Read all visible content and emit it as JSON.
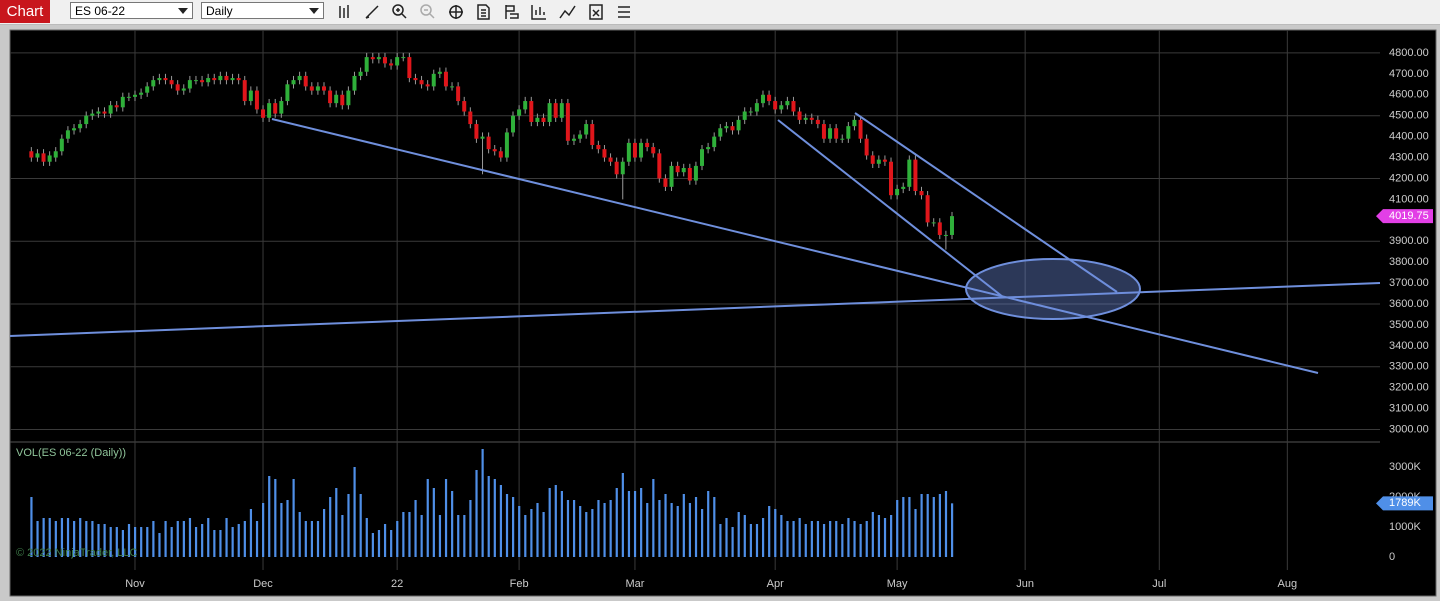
{
  "toolbar": {
    "title": "Chart",
    "instrument": "ES 06-22",
    "interval": "Daily"
  },
  "chart_data": [
    {
      "type": "candlestick",
      "up_color": "#2fb03a",
      "down_color": "#e0161b",
      "wick_color": "#9a9a9a",
      "grid": true,
      "xlim": [
        -3.5,
        221.2
      ],
      "xticks": [
        {
          "value": 17,
          "label": "Nov"
        },
        {
          "value": 38,
          "label": "Dec"
        },
        {
          "value": 60,
          "label": "22"
        },
        {
          "value": 80,
          "label": "Feb"
        },
        {
          "value": 99,
          "label": "Mar"
        },
        {
          "value": 122,
          "label": "Apr"
        },
        {
          "value": 142,
          "label": "May"
        },
        {
          "value": 163,
          "label": "Jun"
        },
        {
          "value": 185,
          "label": "Jul"
        },
        {
          "value": 206,
          "label": "Aug"
        }
      ],
      "ylim": [
        2950,
        4900
      ],
      "yticks": [
        {
          "value": 3000,
          "label": "3000.00"
        },
        {
          "value": 3100,
          "label": "3100.00"
        },
        {
          "value": 3200,
          "label": "3200.00"
        },
        {
          "value": 3300,
          "label": "3300.00"
        },
        {
          "value": 3400,
          "label": "3400.00"
        },
        {
          "value": 3500,
          "label": "3500.00"
        },
        {
          "value": 3600,
          "label": "3600.00"
        },
        {
          "value": 3700,
          "label": "3700.00"
        },
        {
          "value": 3800,
          "label": "3800.00"
        },
        {
          "value": 3900,
          "label": "3900.00"
        },
        {
          "value": 4000,
          "label": "4000.00"
        },
        {
          "value": 4100,
          "label": "4100.00"
        },
        {
          "value": 4200,
          "label": "4200.00"
        },
        {
          "value": 4300,
          "label": "4300.00"
        },
        {
          "value": 4400,
          "label": "4400.00"
        },
        {
          "value": 4500,
          "label": "4500.00"
        },
        {
          "value": 4600,
          "label": "4600.00"
        },
        {
          "value": 4700,
          "label": "4700.00"
        },
        {
          "value": 4800,
          "label": "4800.00"
        }
      ],
      "ygrid": [
        3000,
        3300,
        3600,
        3900,
        4200,
        4500,
        4800
      ],
      "last_price": {
        "value": 4019.75,
        "label": "4019.75"
      },
      "last_price_color": "#e23fe6",
      "open": [
        4330,
        4300,
        4320,
        4280,
        4300,
        4330,
        4390,
        4430,
        4440,
        4460,
        4500,
        4510,
        4520,
        4510,
        4550,
        4540,
        4590,
        4590,
        4600,
        4610,
        4640,
        4670,
        4680,
        4670,
        4650,
        4620,
        4630,
        4670,
        4670,
        4660,
        4680,
        4670,
        4690,
        4670,
        4680,
        4670,
        4570,
        4620,
        4530,
        4490,
        4560,
        4510,
        4570,
        4650,
        4670,
        4690,
        4640,
        4620,
        4640,
        4620,
        4560,
        4600,
        4550,
        4620,
        4690,
        4710,
        4780,
        4770,
        4780,
        4750,
        4740,
        4780,
        4780,
        4680,
        4670,
        4650,
        4640,
        4700,
        4710,
        4640,
        4640,
        4570,
        4520,
        4460,
        4390,
        4400,
        4340,
        4330,
        4300,
        4420,
        4500,
        4530,
        4570,
        4470,
        4490,
        4470,
        4560,
        4490,
        4560,
        4380,
        4390,
        4410,
        4460,
        4360,
        4340,
        4300,
        4280,
        4220,
        4280,
        4370,
        4300,
        4370,
        4350,
        4320,
        4200,
        4160,
        4260,
        4230,
        4250,
        4190,
        4260,
        4340,
        4350,
        4400,
        4440,
        4450,
        4430,
        4480,
        4520,
        4520,
        4560,
        4600,
        4570,
        4530,
        4550,
        4570,
        4520,
        4480,
        4490,
        4480,
        4460,
        4390,
        4440,
        4390,
        4390,
        4450,
        4480,
        4390,
        4310,
        4270,
        4290,
        4280,
        4120,
        4150,
        4160,
        4290,
        4140,
        4120,
        3990,
        3990,
        3930,
        3930
      ],
      "high": [
        4350,
        4340,
        4340,
        4330,
        4350,
        4410,
        4450,
        4460,
        4480,
        4520,
        4530,
        4540,
        4540,
        4570,
        4570,
        4610,
        4610,
        4620,
        4630,
        4660,
        4690,
        4700,
        4700,
        4690,
        4670,
        4650,
        4690,
        4690,
        4690,
        4700,
        4700,
        4710,
        4710,
        4700,
        4700,
        4690,
        4640,
        4640,
        4550,
        4580,
        4580,
        4590,
        4670,
        4690,
        4710,
        4710,
        4660,
        4660,
        4660,
        4640,
        4620,
        4620,
        4640,
        4710,
        4730,
        4800,
        4800,
        4800,
        4800,
        4770,
        4800,
        4800,
        4800,
        4700,
        4690,
        4670,
        4720,
        4730,
        4730,
        4660,
        4660,
        4590,
        4540,
        4480,
        4420,
        4420,
        4360,
        4350,
        4440,
        4520,
        4550,
        4590,
        4590,
        4510,
        4510,
        4580,
        4580,
        4580,
        4580,
        4410,
        4430,
        4480,
        4480,
        4380,
        4360,
        4320,
        4300,
        4300,
        4390,
        4390,
        4390,
        4390,
        4370,
        4340,
        4220,
        4280,
        4280,
        4270,
        4270,
        4280,
        4360,
        4370,
        4420,
        4460,
        4470,
        4470,
        4500,
        4540,
        4540,
        4580,
        4620,
        4620,
        4590,
        4570,
        4590,
        4590,
        4540,
        4510,
        4510,
        4500,
        4480,
        4460,
        4460,
        4410,
        4470,
        4500,
        4500,
        4410,
        4330,
        4310,
        4310,
        4300,
        4170,
        4180,
        4310,
        4310,
        4160,
        4140,
        4010,
        4010,
        3950,
        4040
      ],
      "low": [
        4280,
        4280,
        4260,
        4260,
        4280,
        4310,
        4370,
        4410,
        4420,
        4440,
        4480,
        4490,
        4490,
        4490,
        4520,
        4520,
        4570,
        4570,
        4580,
        4590,
        4620,
        4650,
        4650,
        4630,
        4600,
        4600,
        4610,
        4650,
        4640,
        4640,
        4650,
        4650,
        4650,
        4650,
        4650,
        4550,
        4550,
        4510,
        4470,
        4470,
        4490,
        4490,
        4550,
        4630,
        4650,
        4620,
        4600,
        4600,
        4600,
        4540,
        4540,
        4530,
        4530,
        4600,
        4670,
        4690,
        4750,
        4750,
        4730,
        4720,
        4720,
        4760,
        4660,
        4650,
        4630,
        4620,
        4620,
        4680,
        4620,
        4620,
        4550,
        4500,
        4440,
        4370,
        4220,
        4320,
        4310,
        4280,
        4280,
        4400,
        4480,
        4510,
        4450,
        4450,
        4450,
        4450,
        4470,
        4470,
        4360,
        4360,
        4370,
        4390,
        4340,
        4320,
        4280,
        4260,
        4200,
        4100,
        4260,
        4280,
        4280,
        4330,
        4300,
        4180,
        4140,
        4140,
        4210,
        4210,
        4170,
        4170,
        4240,
        4320,
        4330,
        4380,
        4420,
        4410,
        4410,
        4460,
        4500,
        4500,
        4540,
        4550,
        4510,
        4510,
        4530,
        4500,
        4460,
        4460,
        4460,
        4440,
        4370,
        4370,
        4370,
        4370,
        4370,
        4430,
        4370,
        4290,
        4250,
        4250,
        4260,
        4100,
        4100,
        4130,
        4140,
        4120,
        4100,
        3970,
        3970,
        3910,
        3860,
        3910
      ],
      "close": [
        4300,
        4320,
        4280,
        4310,
        4330,
        4390,
        4430,
        4440,
        4460,
        4500,
        4510,
        4520,
        4510,
        4550,
        4540,
        4590,
        4590,
        4600,
        4610,
        4640,
        4670,
        4680,
        4670,
        4650,
        4620,
        4630,
        4670,
        4670,
        4660,
        4680,
        4670,
        4690,
        4670,
        4680,
        4670,
        4570,
        4620,
        4530,
        4490,
        4560,
        4510,
        4570,
        4650,
        4670,
        4690,
        4640,
        4620,
        4640,
        4620,
        4560,
        4600,
        4550,
        4620,
        4690,
        4710,
        4780,
        4770,
        4780,
        4750,
        4740,
        4780,
        4780,
        4680,
        4670,
        4650,
        4640,
        4700,
        4710,
        4640,
        4640,
        4570,
        4520,
        4460,
        4390,
        4400,
        4340,
        4330,
        4300,
        4420,
        4500,
        4530,
        4570,
        4470,
        4490,
        4470,
        4560,
        4490,
        4560,
        4380,
        4390,
        4410,
        4460,
        4360,
        4340,
        4300,
        4280,
        4220,
        4280,
        4370,
        4300,
        4370,
        4350,
        4320,
        4200,
        4160,
        4260,
        4230,
        4250,
        4190,
        4260,
        4340,
        4350,
        4400,
        4440,
        4450,
        4430,
        4480,
        4520,
        4520,
        4560,
        4600,
        4570,
        4530,
        4550,
        4570,
        4520,
        4480,
        4490,
        4480,
        4460,
        4390,
        4440,
        4390,
        4390,
        4450,
        4480,
        4390,
        4310,
        4270,
        4290,
        4280,
        4120,
        4150,
        4160,
        4290,
        4140,
        4120,
        3990,
        3990,
        3930,
        3930,
        4020
      ]
    },
    {
      "type": "bar",
      "title": "VOL(ES 06-22 (Daily))",
      "color": "#4f8fe8",
      "ylim": [
        0,
        3800
      ],
      "yticks": [
        0,
        {
          "value": 1000,
          "label": "1000K"
        },
        {
          "value": 2000,
          "label": "2000K"
        },
        {
          "value": 3000,
          "label": "3000K"
        }
      ],
      "last_value": {
        "value": 1789,
        "label": "1789K"
      },
      "last_value_color": "#4f8fe8",
      "values": [
        2000,
        1200,
        1300,
        1300,
        1200,
        1300,
        1300,
        1200,
        1300,
        1200,
        1200,
        1100,
        1100,
        1000,
        1000,
        900,
        1100,
        1000,
        1000,
        1000,
        1200,
        800,
        1200,
        1000,
        1200,
        1200,
        1300,
        1000,
        1100,
        1300,
        900,
        900,
        1300,
        1000,
        1100,
        1200,
        1600,
        1200,
        1800,
        2700,
        2600,
        1800,
        1900,
        2600,
        1500,
        1200,
        1200,
        1200,
        1600,
        2000,
        2300,
        1400,
        2100,
        3000,
        2100,
        1300,
        800,
        900,
        1100,
        900,
        1200,
        1500,
        1500,
        1900,
        1400,
        2600,
        2300,
        1400,
        2600,
        2200,
        1400,
        1400,
        1900,
        2900,
        3600,
        2700,
        2600,
        2400,
        2100,
        2000,
        1700,
        1400,
        1600,
        1800,
        1500,
        2300,
        2400,
        2200,
        1900,
        1900,
        1700,
        1500,
        1600,
        1900,
        1800,
        1900,
        2300,
        2800,
        2200,
        2200,
        2300,
        1800,
        2600,
        1900,
        2100,
        1800,
        1700,
        2100,
        1800,
        2000,
        1600,
        2200,
        2000,
        1100,
        1300,
        1000,
        1500,
        1400,
        1100,
        1100,
        1300,
        1700,
        1600,
        1400,
        1200,
        1200,
        1300,
        1100,
        1200,
        1200,
        1100,
        1200,
        1200,
        1100,
        1300,
        1200,
        1100,
        1200,
        1500,
        1400,
        1300,
        1400,
        1900,
        2000,
        2000,
        1600,
        2100,
        2100,
        2000,
        2100,
        2200,
        1789
      ]
    }
  ],
  "footer": {
    "copyright": "© 2022 NinjaTrader, LLC"
  }
}
